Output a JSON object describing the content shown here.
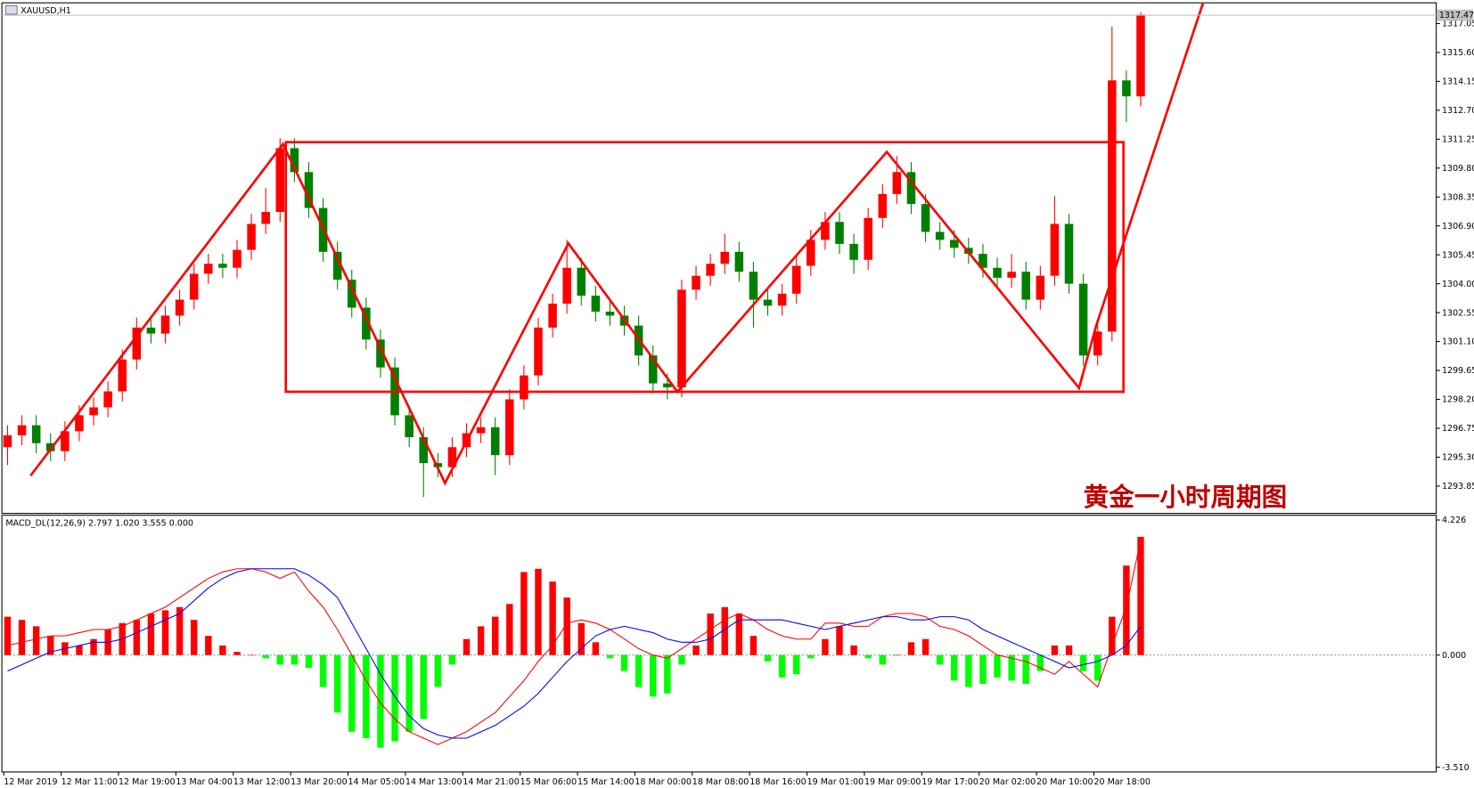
{
  "window_title": "XAUUSD,H1",
  "watermark": "黄金一小时周期图",
  "chart_data": [
    {
      "type": "candlestick",
      "categories": [
        "12 Mar 2019",
        null,
        null,
        null,
        "12 Mar 11:00",
        null,
        null,
        null,
        "12 Mar 19:00",
        null,
        null,
        null,
        "13 Mar 04:00",
        null,
        null,
        null,
        "13 Mar 12:00",
        null,
        null,
        null,
        "13 Mar 20:00",
        null,
        null,
        null,
        "14 Mar 05:00",
        null,
        null,
        null,
        "14 Mar 13:00",
        null,
        null,
        null,
        "14 Mar 21:00",
        null,
        null,
        null,
        "15 Mar 06:00",
        null,
        null,
        null,
        "15 Mar 14:00",
        null,
        null,
        null,
        "18 Mar 00:00",
        null,
        null,
        null,
        "18 Mar 08:00",
        null,
        null,
        null,
        "18 Mar 16:00",
        null,
        null,
        null,
        "19 Mar 01:00",
        null,
        null,
        null,
        "19 Mar 09:00",
        null,
        null,
        null,
        "19 Mar 17:00",
        null,
        null,
        null,
        "20 Mar 02:00",
        null,
        null,
        null,
        "20 Mar 10:00",
        null,
        null,
        null,
        "20 Mar 18:00",
        null,
        null,
        null
      ],
      "open": [
        1295.8,
        1296.4,
        1296.9,
        1296.0,
        1295.6,
        1296.6,
        1297.4,
        1297.8,
        1298.6,
        1300.2,
        1301.8,
        1301.5,
        1302.4,
        1303.2,
        1304.5,
        1305.0,
        1304.8,
        1305.7,
        1307.0,
        1307.6,
        1310.8,
        1309.6,
        1307.8,
        1305.6,
        1304.2,
        1302.8,
        1301.2,
        1299.8,
        1297.4,
        1296.3,
        1295.0,
        1294.8,
        1295.8,
        1296.5,
        1296.8,
        1295.4,
        1298.2,
        1299.4,
        1301.8,
        1303.0,
        1304.8,
        1303.4,
        1302.6,
        1302.4,
        1301.9,
        1300.4,
        1299.0,
        1298.8,
        1303.7,
        1304.4,
        1305.0,
        1305.6,
        1304.6,
        1303.2,
        1302.9,
        1303.5,
        1304.9,
        1306.2,
        1307.1,
        1306.0,
        1305.2,
        1307.3,
        1308.5,
        1309.6,
        1308.0,
        1306.6,
        1306.2,
        1305.8,
        1305.5,
        1304.8,
        1304.3,
        1304.6,
        1303.2,
        1304.4,
        1307.0,
        1304.0,
        1300.4,
        1301.6,
        1314.2,
        1313.4
      ],
      "high": [
        1296.9,
        1297.4,
        1297.4,
        1296.5,
        1297.1,
        1297.9,
        1298.3,
        1299.1,
        1300.7,
        1302.3,
        1302.3,
        1302.9,
        1303.7,
        1305.0,
        1305.5,
        1305.5,
        1306.2,
        1307.5,
        1308.8,
        1311.3,
        1311.3,
        1310.1,
        1308.3,
        1306.1,
        1304.7,
        1303.3,
        1301.7,
        1300.3,
        1297.9,
        1296.8,
        1295.5,
        1296.3,
        1297.0,
        1297.3,
        1297.3,
        1298.7,
        1299.9,
        1302.3,
        1303.5,
        1306.2,
        1305.3,
        1303.9,
        1303.1,
        1302.9,
        1302.4,
        1300.9,
        1299.5,
        1304.2,
        1304.9,
        1305.5,
        1306.5,
        1306.1,
        1305.1,
        1303.7,
        1304.0,
        1305.4,
        1306.7,
        1307.6,
        1307.6,
        1306.5,
        1307.8,
        1309.0,
        1310.4,
        1310.1,
        1308.5,
        1307.1,
        1306.7,
        1306.3,
        1306.0,
        1305.3,
        1305.5,
        1305.1,
        1304.9,
        1308.4,
        1307.5,
        1304.5,
        1302.1,
        1316.9,
        1314.7,
        1317.6
      ],
      "low": [
        1294.9,
        1295.9,
        1295.5,
        1295.1,
        1295.1,
        1296.1,
        1296.9,
        1297.3,
        1298.1,
        1299.7,
        1301.0,
        1301.0,
        1301.9,
        1302.7,
        1304.0,
        1304.3,
        1304.3,
        1305.2,
        1306.5,
        1307.1,
        1309.1,
        1307.3,
        1305.1,
        1303.7,
        1302.3,
        1300.7,
        1299.3,
        1296.9,
        1295.8,
        1293.3,
        1294.3,
        1294.3,
        1295.3,
        1296.0,
        1294.4,
        1294.9,
        1297.7,
        1298.9,
        1301.3,
        1302.5,
        1302.9,
        1302.1,
        1301.9,
        1301.4,
        1299.9,
        1298.5,
        1298.2,
        1298.3,
        1303.2,
        1303.9,
        1304.5,
        1304.1,
        1301.8,
        1302.4,
        1302.4,
        1303.0,
        1304.4,
        1305.7,
        1305.5,
        1304.5,
        1304.7,
        1306.8,
        1308.0,
        1307.5,
        1306.1,
        1305.7,
        1305.3,
        1305.0,
        1304.3,
        1303.8,
        1303.8,
        1302.7,
        1302.7,
        1303.9,
        1303.5,
        1299.9,
        1299.9,
        1301.1,
        1312.1,
        1312.9
      ],
      "close": [
        1296.4,
        1296.9,
        1296.0,
        1295.6,
        1296.6,
        1297.4,
        1297.8,
        1298.6,
        1300.2,
        1301.8,
        1301.5,
        1302.4,
        1303.2,
        1304.5,
        1305.0,
        1304.8,
        1305.7,
        1307.0,
        1307.6,
        1310.8,
        1309.6,
        1307.8,
        1305.6,
        1304.2,
        1302.8,
        1301.2,
        1299.8,
        1297.4,
        1296.3,
        1295.0,
        1294.8,
        1295.8,
        1296.5,
        1296.8,
        1295.4,
        1298.2,
        1299.4,
        1301.8,
        1303.0,
        1304.8,
        1303.4,
        1302.6,
        1302.4,
        1301.9,
        1300.4,
        1299.0,
        1298.8,
        1303.7,
        1304.4,
        1305.0,
        1305.6,
        1304.6,
        1303.2,
        1302.9,
        1303.5,
        1304.9,
        1306.2,
        1307.1,
        1306.0,
        1305.2,
        1307.3,
        1308.5,
        1309.6,
        1308.0,
        1306.6,
        1306.2,
        1305.8,
        1305.5,
        1304.8,
        1304.3,
        1304.6,
        1303.2,
        1304.4,
        1307.0,
        1304.0,
        1300.4,
        1301.6,
        1314.2,
        1313.4,
        1317.5
      ],
      "up_color": "#ff0000",
      "down_color": "#008000",
      "ylim": [
        1292.48,
        1318.09
      ],
      "yticks": [
        1293.85,
        {
          "value": 1295.3,
          "label": "1295.30"
        },
        1296.75,
        {
          "value": 1298.2,
          "label": "1298.20"
        },
        1299.65,
        {
          "value": 1301.1,
          "label": "1301.10"
        },
        1302.55,
        {
          "value": 1304,
          "label": "1304.00"
        },
        1305.45,
        {
          "value": 1306.9,
          "label": "1306.90"
        },
        1308.35,
        {
          "value": 1309.8,
          "label": "1309.80"
        },
        1311.25,
        {
          "value": 1312.7,
          "label": "1312.70"
        },
        1314.15,
        {
          "value": 1315.6,
          "label": "1315.60"
        },
        1317.05
      ],
      "current_price": 1317.47,
      "zigzag": {
        "x": [
          1.6,
          19.2,
          30.5,
          39.1,
          46.7,
          61.3,
          74.7,
          75.9,
          83.4
        ],
        "y": [
          1294.37,
          1311.0,
          1294.0,
          1306.02,
          1298.58,
          1310.61,
          1298.77,
          1301.9,
          1318.2
        ],
        "color": "#ff0000"
      },
      "rectangle": {
        "x": [
          19.4,
          77.8
        ],
        "y": [
          1298.58,
          1311.1
        ],
        "color": "#ff0000"
      }
    },
    {
      "type": "macd",
      "title": "MACD_DL(12,26,9) 2.797 1.020 3.555 0.000",
      "ylim": [
        -3.658,
        4.374
      ],
      "yticks": [
        {
          "value": -3.51,
          "label": "-3.510"
        },
        {
          "value": 0,
          "label": "0.000"
        },
        4.226
      ],
      "series": [
        {
          "name": "histogram",
          "up_color": "#ff0000",
          "down_color": "#00ff00",
          "values": [
            1.2,
            1.1,
            0.9,
            0.6,
            0.4,
            0.3,
            0.5,
            0.8,
            1.0,
            1.1,
            1.3,
            1.4,
            1.5,
            1.1,
            0.6,
            0.3,
            0.1,
            0.0,
            -0.1,
            -0.3,
            -0.3,
            -0.4,
            -1.0,
            -1.8,
            -2.4,
            -2.6,
            -2.9,
            -2.7,
            -2.4,
            -2.0,
            -1.0,
            -0.3,
            0.5,
            0.9,
            1.2,
            1.6,
            2.6,
            2.7,
            2.3,
            1.8,
            1.0,
            0.4,
            -0.1,
            -0.5,
            -1.0,
            -1.3,
            -1.2,
            -0.3,
            0.3,
            1.3,
            1.5,
            1.3,
            0.6,
            -0.2,
            -0.7,
            -0.6,
            -0.1,
            0.5,
            0.9,
            0.3,
            -0.1,
            -0.3,
            0.0,
            0.4,
            0.5,
            -0.3,
            -0.8,
            -1.0,
            -0.9,
            -0.7,
            -0.8,
            -0.9,
            -0.5,
            0.3,
            0.3,
            -0.5,
            -0.8,
            1.2,
            2.8,
            3.7
          ]
        },
        {
          "name": "macd",
          "color": "#ff0000",
          "values": [
            0.3,
            0.4,
            0.5,
            0.6,
            0.6,
            0.7,
            0.8,
            0.8,
            0.9,
            1.1,
            1.3,
            1.5,
            1.8,
            2.1,
            2.4,
            2.6,
            2.7,
            2.7,
            2.6,
            2.4,
            2.6,
            2.0,
            1.5,
            0.8,
            0.0,
            -0.8,
            -1.5,
            -2.0,
            -2.4,
            -2.6,
            -2.8,
            -2.6,
            -2.4,
            -2.1,
            -1.8,
            -1.3,
            -0.8,
            -0.2,
            0.3,
            1.0,
            1.1,
            1.0,
            0.8,
            0.5,
            0.2,
            0.0,
            -0.1,
            0.2,
            0.5,
            0.8,
            1.1,
            1.3,
            1.1,
            0.8,
            0.6,
            0.5,
            0.5,
            1.0,
            1.0,
            0.9,
            0.9,
            1.2,
            1.3,
            1.3,
            1.2,
            0.9,
            0.8,
            0.6,
            0.3,
            0.0,
            -0.1,
            -0.2,
            -0.4,
            -0.6,
            -0.2,
            -0.6,
            -1.0,
            0.3,
            1.5,
            3.6
          ]
        },
        {
          "name": "signal",
          "color": "#0000ff",
          "values": [
            -0.5,
            -0.3,
            -0.1,
            0.1,
            0.2,
            0.3,
            0.4,
            0.4,
            0.5,
            0.7,
            0.9,
            1.1,
            1.3,
            1.7,
            2.1,
            2.4,
            2.6,
            2.7,
            2.7,
            2.7,
            2.7,
            2.5,
            2.2,
            1.8,
            1.0,
            0.2,
            -0.6,
            -1.3,
            -1.9,
            -2.3,
            -2.5,
            -2.6,
            -2.6,
            -2.4,
            -2.2,
            -1.9,
            -1.6,
            -1.2,
            -0.7,
            -0.2,
            0.2,
            0.6,
            0.8,
            0.9,
            0.8,
            0.7,
            0.5,
            0.4,
            0.4,
            0.5,
            0.8,
            1.1,
            1.1,
            1.1,
            1.1,
            1.0,
            0.9,
            0.8,
            0.9,
            1.0,
            1.1,
            1.2,
            1.2,
            1.1,
            1.1,
            1.2,
            1.2,
            1.1,
            0.8,
            0.6,
            0.4,
            0.2,
            0.0,
            -0.2,
            -0.4,
            -0.3,
            -0.2,
            0.0,
            0.3,
            0.9
          ]
        }
      ]
    }
  ]
}
